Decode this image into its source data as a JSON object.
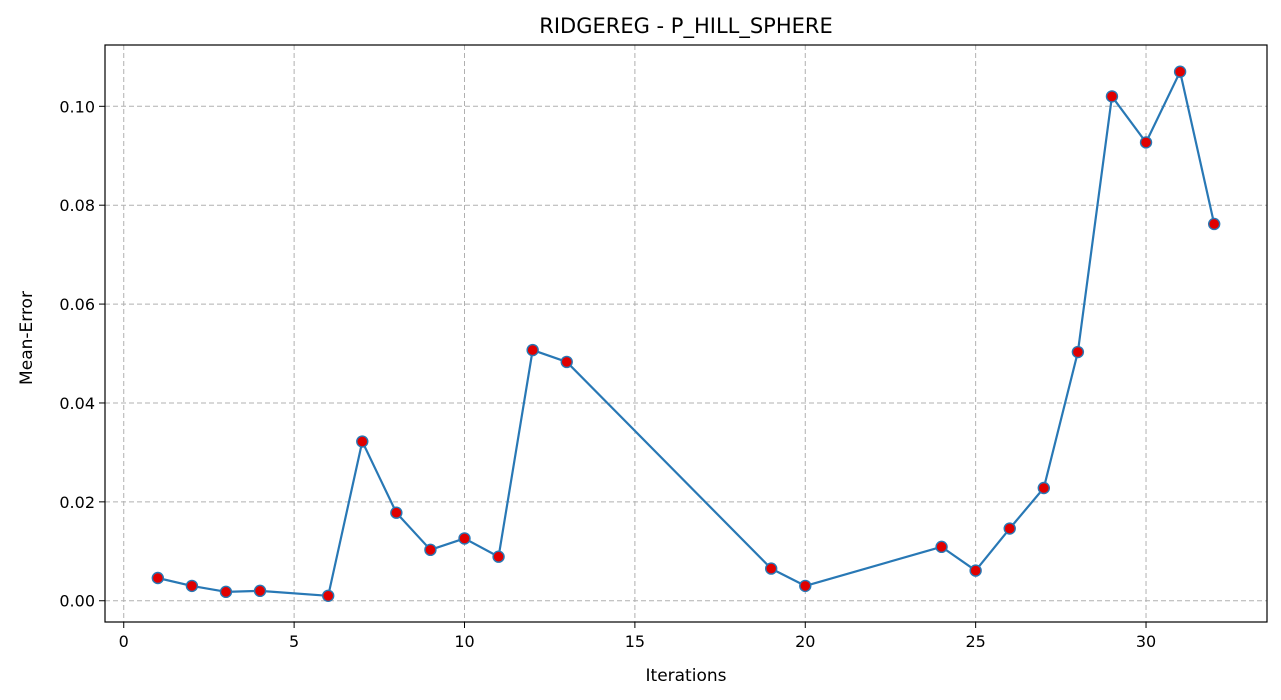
{
  "chart_data": {
    "type": "line",
    "title": "RIDGEREG - P_HILL_SPHERE",
    "xlabel": "Iterations",
    "ylabel": "Mean-Error",
    "xlim": [
      -0.55,
      33.55
    ],
    "ylim": [
      -0.0043,
      0.1124
    ],
    "x_ticks": [
      0,
      5,
      10,
      15,
      20,
      25,
      30
    ],
    "x_tick_labels": [
      "0",
      "5",
      "10",
      "15",
      "20",
      "25",
      "30"
    ],
    "y_ticks": [
      0.0,
      0.02,
      0.04,
      0.06,
      0.08,
      0.1
    ],
    "y_tick_labels": [
      "0.00",
      "0.02",
      "0.04",
      "0.06",
      "0.08",
      "0.10"
    ],
    "grid": true,
    "series": [
      {
        "line_color": "#2878b5",
        "marker_face": "#e00000",
        "marker_edge": "#2878b5",
        "x": [
          1,
          2,
          3,
          4,
          6,
          7,
          8,
          9,
          10,
          11,
          12,
          13,
          19,
          20,
          24,
          25,
          26,
          27,
          28,
          29,
          30,
          31,
          32
        ],
        "y": [
          0.0046,
          0.003,
          0.0018,
          0.002,
          0.001,
          0.0322,
          0.0178,
          0.0103,
          0.0126,
          0.0089,
          0.0507,
          0.0483,
          0.0065,
          0.003,
          0.0109,
          0.0061,
          0.0146,
          0.0228,
          0.0503,
          0.102,
          0.0927,
          0.107,
          0.0762
        ]
      }
    ]
  }
}
